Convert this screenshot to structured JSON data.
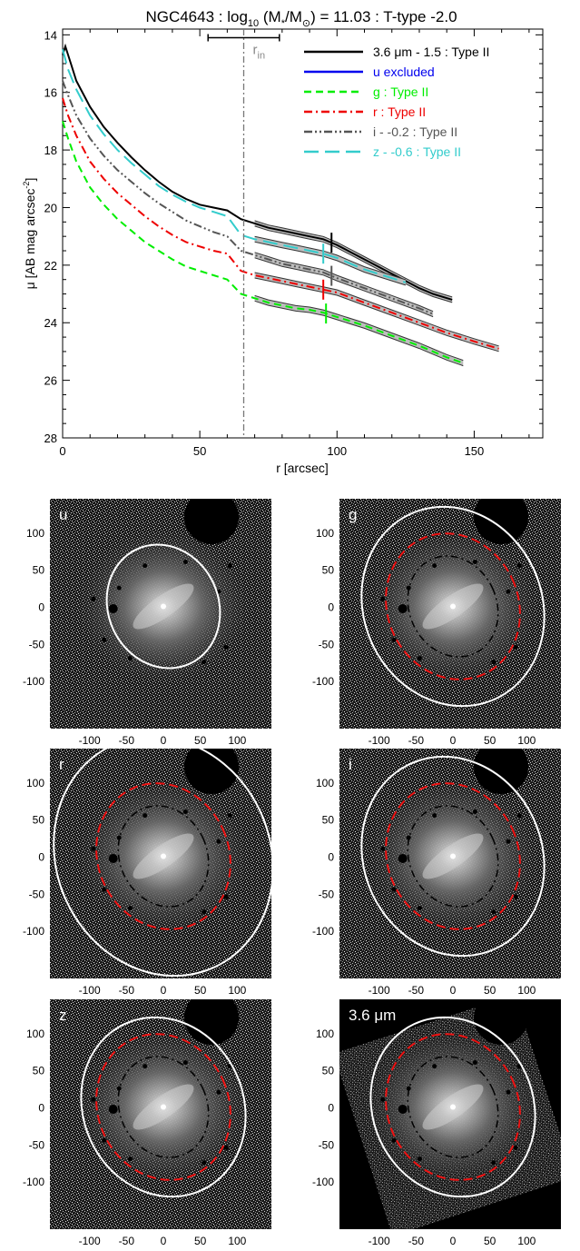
{
  "chart_data": [
    {
      "type": "line",
      "title_parts": {
        "pre": "NGC4643 : log",
        "sub1": "10",
        "mid": " (M",
        "sub2": "*",
        "mid2": "/M",
        "sub3": "⊙",
        "post": ") = 11.03 : T-type -2.0"
      },
      "xlabel": "r [arcsec]",
      "ylabel_parts": {
        "pre": "μ [AB mag arcsec",
        "sup": "-2",
        "post": "]"
      },
      "xlim": [
        0,
        175
      ],
      "ylim": [
        28,
        13.8
      ],
      "y_inverted": true,
      "xticks": [
        0,
        50,
        100,
        150
      ],
      "yticks": [
        14,
        16,
        18,
        20,
        22,
        24,
        26,
        28
      ],
      "rin_marker": {
        "label_base": "r",
        "label_sub": "in",
        "x": 66,
        "range": [
          53,
          79
        ],
        "y": 14.1
      },
      "series": [
        {
          "name": "3.6 μm - 1.5 : Type II",
          "color": "#000000",
          "dash": "solid",
          "x": [
            0,
            1,
            3,
            5,
            10,
            15,
            20,
            25,
            30,
            35,
            40,
            45,
            50,
            55,
            60,
            65,
            70,
            75,
            80,
            85,
            90,
            95,
            100,
            105,
            110,
            115,
            120,
            125,
            130,
            135,
            142
          ],
          "y": [
            14.7,
            14.4,
            15.0,
            15.6,
            16.5,
            17.2,
            17.75,
            18.25,
            18.7,
            19.1,
            19.45,
            19.7,
            19.9,
            20.0,
            20.1,
            20.4,
            20.55,
            20.7,
            20.8,
            20.9,
            21.0,
            21.1,
            21.3,
            21.55,
            21.8,
            22.05,
            22.3,
            22.55,
            22.8,
            23.0,
            23.2
          ],
          "break_x": 98,
          "fit_start": 66
        },
        {
          "name": "u excluded",
          "color": "#0000ee",
          "dash": "solid",
          "x": [],
          "y": []
        },
        {
          "name": "g : Type II",
          "color": "#00ee00",
          "dash": "dash",
          "x": [
            0,
            2,
            5,
            10,
            15,
            20,
            25,
            30,
            35,
            40,
            45,
            50,
            55,
            60,
            65,
            70,
            75,
            80,
            85,
            90,
            95,
            100,
            110,
            120,
            130,
            140,
            146
          ],
          "y": [
            17.0,
            17.6,
            18.4,
            19.3,
            19.9,
            20.4,
            20.8,
            21.2,
            21.5,
            21.8,
            22.05,
            22.2,
            22.35,
            22.5,
            23.0,
            23.15,
            23.3,
            23.4,
            23.5,
            23.55,
            23.65,
            23.8,
            24.1,
            24.45,
            24.8,
            25.2,
            25.4
          ],
          "break_x": 96,
          "fit_start": 66
        },
        {
          "name": "r : Type II",
          "color": "#ee0000",
          "dash": "dashdot",
          "x": [
            0,
            2,
            5,
            10,
            15,
            20,
            25,
            30,
            35,
            40,
            45,
            50,
            55,
            60,
            65,
            70,
            75,
            80,
            85,
            90,
            95,
            100,
            110,
            120,
            130,
            140,
            150,
            159
          ],
          "y": [
            16.2,
            16.8,
            17.5,
            18.4,
            19.0,
            19.5,
            19.9,
            20.3,
            20.65,
            20.95,
            21.2,
            21.35,
            21.5,
            21.6,
            22.2,
            22.35,
            22.45,
            22.55,
            22.65,
            22.75,
            22.85,
            22.95,
            23.3,
            23.65,
            24.0,
            24.35,
            24.65,
            24.9
          ],
          "break_x": 95,
          "fit_start": 66
        },
        {
          "name": "i - -0.2 : Type II",
          "color": "#555555",
          "dash": "dashdotdot",
          "x": [
            0,
            2,
            5,
            10,
            15,
            20,
            25,
            30,
            35,
            40,
            45,
            50,
            55,
            60,
            65,
            70,
            75,
            80,
            85,
            90,
            95,
            100,
            110,
            120,
            130,
            135
          ],
          "y": [
            15.6,
            16.1,
            16.8,
            17.6,
            18.2,
            18.7,
            19.1,
            19.5,
            19.85,
            20.15,
            20.45,
            20.65,
            20.85,
            21.0,
            21.5,
            21.65,
            21.8,
            21.95,
            22.05,
            22.15,
            22.25,
            22.45,
            22.8,
            23.15,
            23.5,
            23.7
          ],
          "break_x": 98,
          "fit_start": 66
        },
        {
          "name": "z - -0.6 : Type II",
          "color": "#33cccc",
          "dash": "longdash",
          "x": [
            0,
            2,
            5,
            10,
            15,
            20,
            25,
            30,
            35,
            40,
            45,
            50,
            55,
            60,
            65,
            70,
            75,
            80,
            85,
            90,
            95,
            100,
            105,
            110,
            115,
            120,
            125
          ],
          "y": [
            14.5,
            15.2,
            15.9,
            16.8,
            17.45,
            18.0,
            18.45,
            18.85,
            19.25,
            19.55,
            19.8,
            20.0,
            20.15,
            20.3,
            20.95,
            21.1,
            21.2,
            21.3,
            21.4,
            21.5,
            21.6,
            21.75,
            21.95,
            22.15,
            22.3,
            22.45,
            22.6
          ],
          "break_x": 95,
          "fit_start": 66
        }
      ]
    },
    {
      "type": "image",
      "description_panels": "masked galaxy images with isophote ellipses",
      "xticks": [
        -100,
        -50,
        0,
        50,
        100
      ],
      "yticks": [
        100,
        50,
        0,
        -50,
        -100
      ],
      "panels": [
        {
          "label": "u",
          "outer_ellipse": true,
          "dashdot_ellipse": false,
          "red_ellipse": false,
          "outer_scale": 0.62
        },
        {
          "label": "g",
          "outer_ellipse": true,
          "dashdot_ellipse": true,
          "red_ellipse": true,
          "outer_scale": 1.0
        },
        {
          "label": "r",
          "outer_ellipse": true,
          "dashdot_ellipse": true,
          "red_ellipse": true,
          "outer_scale": 1.2
        },
        {
          "label": "i",
          "outer_ellipse": true,
          "dashdot_ellipse": true,
          "red_ellipse": true,
          "outer_scale": 1.0
        },
        {
          "label": "z",
          "outer_ellipse": true,
          "dashdot_ellipse": true,
          "red_ellipse": true,
          "outer_scale": 0.9
        },
        {
          "label": "3.6 μm",
          "outer_ellipse": true,
          "dashdot_ellipse": true,
          "red_ellipse": true,
          "outer_scale": 0.9,
          "rotated_frame": true
        }
      ]
    }
  ]
}
